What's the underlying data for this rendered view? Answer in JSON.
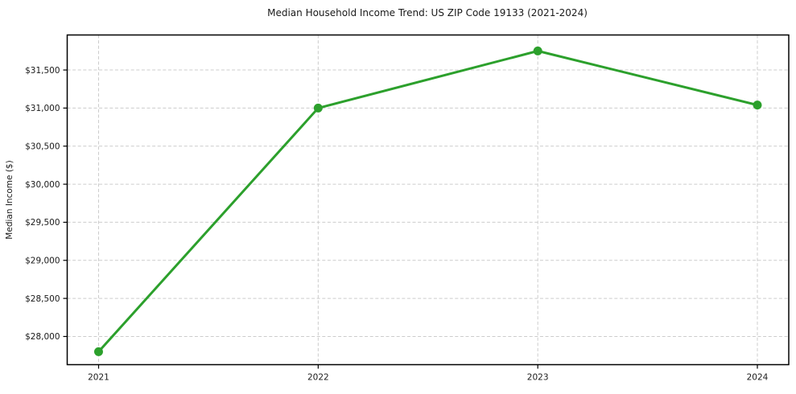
{
  "chart_data": {
    "type": "line",
    "title": "Median Household Income Trend: US ZIP Code 19133 (2021-2024)",
    "xlabel": "",
    "ylabel": "Median Income ($)",
    "categories": [
      "2021",
      "2022",
      "2023",
      "2024"
    ],
    "series": [
      {
        "name": "Median Household Income",
        "values": [
          27800,
          31000,
          31750,
          31040
        ]
      }
    ],
    "ylim": [
      27630,
      31960
    ],
    "yticks": [
      28000,
      28500,
      29000,
      29500,
      30000,
      30500,
      31000,
      31500
    ],
    "ytick_labels": [
      "$28,000",
      "$28,500",
      "$29,000",
      "$29,500",
      "$30,000",
      "$30,500",
      "$31,000",
      "$31,500"
    ],
    "grid": true,
    "grid_style": "dashed",
    "legend": "none",
    "colors": {
      "line": "#2ca02c",
      "marker": "#2ca02c",
      "grid": "#cccccc",
      "axis": "#000000",
      "text": "#1a1a1a",
      "background": "#ffffff"
    }
  }
}
